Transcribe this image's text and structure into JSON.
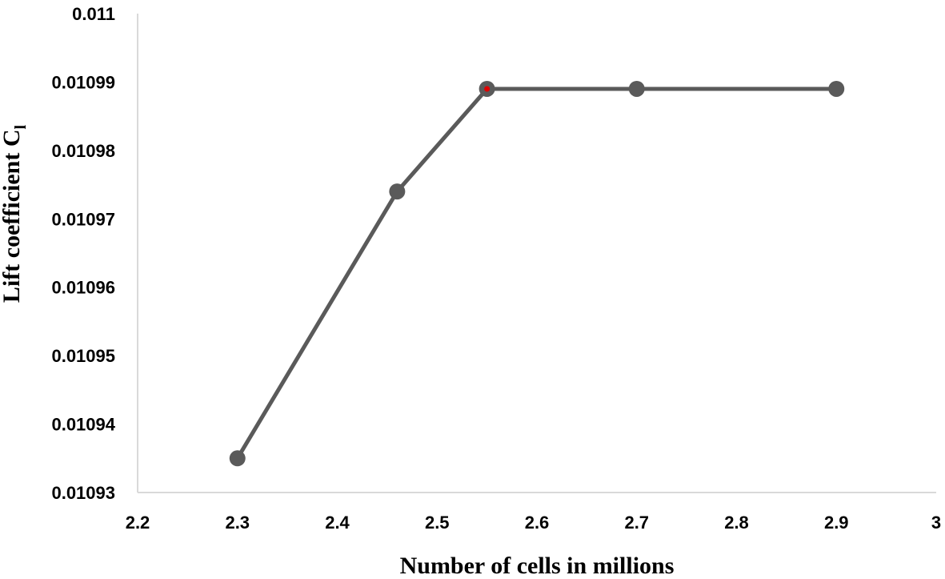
{
  "chart_data": {
    "type": "line",
    "title": "",
    "xlabel": "Number of cells in millions",
    "ylabel_main": "Lift coefficient C",
    "ylabel_subscript": "l",
    "xlim": [
      2.2,
      3.0
    ],
    "ylim": [
      0.01093,
      0.011
    ],
    "x_ticks": [
      "2.2",
      "2.3",
      "2.4",
      "2.5",
      "2.6",
      "2.7",
      "2.8",
      "2.9",
      "3"
    ],
    "y_ticks": [
      "0.01093",
      "0.01094",
      "0.01095",
      "0.01096",
      "0.01097",
      "0.01098",
      "0.01099",
      "0.011"
    ],
    "grid": false,
    "legend": "none",
    "series": [
      {
        "x": [
          2.3,
          2.46,
          2.55,
          2.7,
          2.9
        ],
        "y": [
          0.010935,
          0.010974,
          0.010989,
          0.010989,
          0.010989
        ],
        "color": "#5a5a5a"
      }
    ],
    "highlight_point_index": 2,
    "highlight_color": "#e00000",
    "axis_color": "#d9d9d9"
  }
}
